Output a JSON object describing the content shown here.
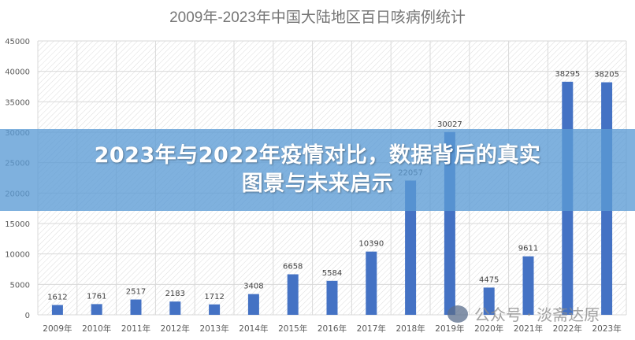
{
  "chart_data": {
    "type": "bar",
    "title": "2009年-2023年中国大陆地区百日咳病例统计",
    "categories": [
      "2009年",
      "2010年",
      "2011年",
      "2012年",
      "2013年",
      "2014年",
      "2015年",
      "2016年",
      "2017年",
      "2018年",
      "2019年",
      "2020年",
      "2021年",
      "2022年",
      "2023年"
    ],
    "values": [
      1612,
      1761,
      2517,
      2183,
      1712,
      3408,
      6658,
      5584,
      10390,
      22057,
      30027,
      4475,
      9611,
      38295,
      38205
    ],
    "yticks": [
      0,
      5000,
      10000,
      15000,
      20000,
      25000,
      30000,
      35000,
      40000,
      45000
    ],
    "ylim": [
      0,
      45000
    ],
    "xlabel": "",
    "ylabel": "",
    "grid": true,
    "legend": "none",
    "bar_color": "#4472c4"
  },
  "banner": {
    "line1": "2023年与2022年疫情对比，数据背后的真实",
    "line2": "图景与未来启示"
  },
  "watermark": "公众号 · 淡斋达原"
}
